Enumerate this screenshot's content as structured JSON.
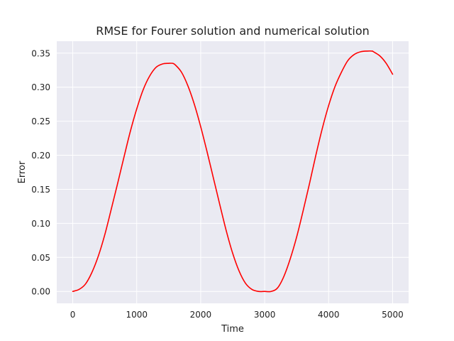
{
  "chart_data": {
    "type": "line",
    "title": "RMSE for Fourer solution and numerical solution",
    "xlabel": "Time",
    "ylabel": "Error",
    "xlim": [
      -250,
      5250
    ],
    "ylim": [
      -0.0175,
      0.3675
    ],
    "xticks": [
      0,
      1000,
      2000,
      3000,
      4000,
      5000
    ],
    "xtick_labels": [
      "0",
      "1000",
      "2000",
      "3000",
      "4000",
      "5000"
    ],
    "yticks": [
      0.0,
      0.05,
      0.1,
      0.15,
      0.2,
      0.25,
      0.3,
      0.35
    ],
    "ytick_labels": [
      "0.00",
      "0.05",
      "0.10",
      "0.15",
      "0.20",
      "0.25",
      "0.30",
      "0.35"
    ],
    "grid": true,
    "background_color": "#eaeaf2",
    "grid_color": "#ffffff",
    "series": [
      {
        "color": "#ff0000",
        "x": [
          0,
          100,
          200,
          300,
          400,
          500,
          600,
          700,
          800,
          900,
          1000,
          1100,
          1200,
          1300,
          1400,
          1500,
          1560,
          1600,
          1700,
          1800,
          1900,
          2000,
          2100,
          2200,
          2300,
          2400,
          2500,
          2600,
          2700,
          2800,
          2900,
          3000,
          3100,
          3200,
          3300,
          3400,
          3500,
          3600,
          3700,
          3800,
          3900,
          4000,
          4100,
          4200,
          4300,
          4400,
          4500,
          4600,
          4680,
          4700,
          4800,
          4900,
          5000
        ],
        "y": [
          0.0,
          0.003,
          0.011,
          0.028,
          0.052,
          0.083,
          0.12,
          0.158,
          0.197,
          0.235,
          0.268,
          0.296,
          0.316,
          0.329,
          0.334,
          0.335,
          0.335,
          0.333,
          0.322,
          0.302,
          0.275,
          0.242,
          0.205,
          0.166,
          0.127,
          0.089,
          0.056,
          0.03,
          0.012,
          0.003,
          0.0,
          0.0,
          0.0,
          0.005,
          0.022,
          0.048,
          0.08,
          0.118,
          0.158,
          0.2,
          0.239,
          0.273,
          0.301,
          0.322,
          0.339,
          0.348,
          0.352,
          0.353,
          0.353,
          0.352,
          0.346,
          0.335,
          0.319
        ]
      }
    ]
  }
}
